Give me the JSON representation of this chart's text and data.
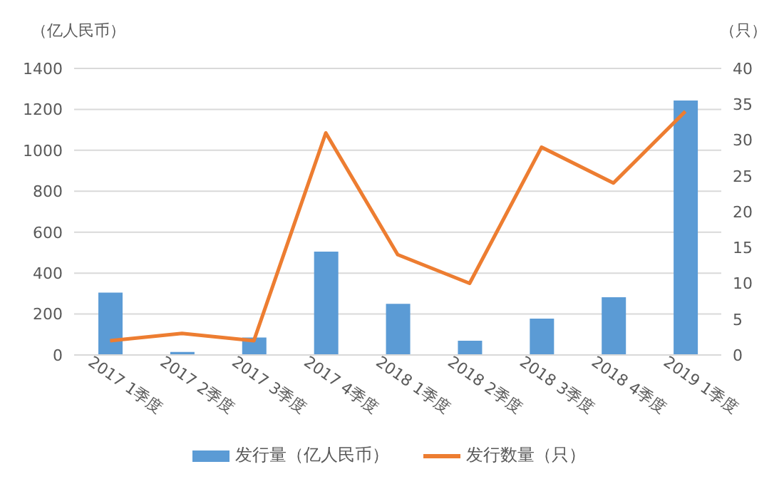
{
  "chart_data": {
    "type": "bar",
    "ylabel": "（亿人民币）",
    "y2label": "（只）",
    "categories": [
      "2017 1季度",
      "2017 2季度",
      "2017 3季度",
      "2017 4季度",
      "2018 1季度",
      "2018 2季度",
      "2018 3季度",
      "2018 4季度",
      "2019 1季度"
    ],
    "series": [
      {
        "name": "发行量（亿人民币）",
        "color": "#5b9bd5",
        "values": [
          305,
          15,
          85,
          505,
          250,
          70,
          178,
          282,
          1243
        ]
      },
      {
        "name": "发行数量（只）",
        "type": "line",
        "axis": "y2",
        "color": "#ed7d31",
        "values": [
          2,
          3,
          2,
          31,
          14,
          10,
          29,
          24,
          34
        ]
      }
    ],
    "ylim": [
      0,
      1400
    ],
    "yticks": [
      0,
      200,
      400,
      600,
      800,
      1000,
      1200,
      1400
    ],
    "y2lim": [
      0,
      40
    ],
    "y2ticks": [
      0,
      5,
      10,
      15,
      20,
      25,
      30,
      35,
      40
    ],
    "grid": "y",
    "legend": "bottom",
    "marker": "none"
  }
}
